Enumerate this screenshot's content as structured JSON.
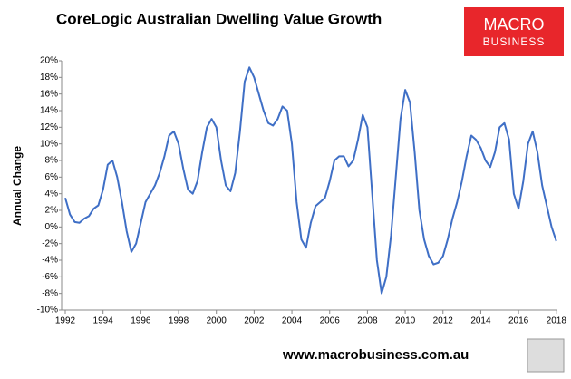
{
  "chart_data": {
    "type": "line",
    "title": "CoreLogic Australian Dwelling Value Growth",
    "ylabel": "Annual Change",
    "logo": {
      "line1": "MACRO",
      "line2": "BUSINESS"
    },
    "footer": "www.macrobusiness.com.au",
    "xlim": [
      1992,
      2018.25
    ],
    "xticks": [
      1992,
      1994,
      1996,
      1998,
      2000,
      2002,
      2004,
      2006,
      2008,
      2010,
      2012,
      2014,
      2016,
      2018
    ],
    "ylim": [
      -10,
      20
    ],
    "yticks": [
      {
        "value": -10,
        "label": "-10%"
      },
      {
        "value": -8,
        "label": "-8%"
      },
      {
        "value": -6,
        "label": "-6%"
      },
      {
        "value": -4,
        "label": "-4%"
      },
      {
        "value": -2,
        "label": "-2%"
      },
      {
        "value": 0,
        "label": "0%"
      },
      {
        "value": 2,
        "label": "2%"
      },
      {
        "value": 4,
        "label": "4%"
      },
      {
        "value": 6,
        "label": "6%"
      },
      {
        "value": 8,
        "label": "8%"
      },
      {
        "value": 10,
        "label": "10%"
      },
      {
        "value": 12,
        "label": "12%"
      },
      {
        "value": 14,
        "label": "14%"
      },
      {
        "value": 16,
        "label": "16%"
      },
      {
        "value": 18,
        "label": "18%"
      },
      {
        "value": 20,
        "label": "20%"
      }
    ],
    "grid": false,
    "x": [
      1992,
      1992.25,
      1992.5,
      1992.75,
      1993,
      1993.25,
      1993.5,
      1993.75,
      1994,
      1994.25,
      1994.5,
      1994.75,
      1995,
      1995.25,
      1995.5,
      1995.75,
      1996,
      1996.25,
      1996.5,
      1996.75,
      1997,
      1997.25,
      1997.5,
      1997.75,
      1998,
      1998.25,
      1998.5,
      1998.75,
      1999,
      1999.25,
      1999.5,
      1999.75,
      2000,
      2000.25,
      2000.5,
      2000.75,
      2001,
      2001.25,
      2001.5,
      2001.75,
      2002,
      2002.25,
      2002.5,
      2002.75,
      2003,
      2003.25,
      2003.5,
      2003.75,
      2004,
      2004.25,
      2004.5,
      2004.75,
      2005,
      2005.25,
      2005.5,
      2005.75,
      2006,
      2006.25,
      2006.5,
      2006.75,
      2007,
      2007.25,
      2007.5,
      2007.75,
      2008,
      2008.25,
      2008.5,
      2008.75,
      2009,
      2009.25,
      2009.5,
      2009.75,
      2010,
      2010.25,
      2010.5,
      2010.75,
      2011,
      2011.25,
      2011.5,
      2011.75,
      2012,
      2012.25,
      2012.5,
      2012.75,
      2013,
      2013.25,
      2013.5,
      2013.75,
      2014,
      2014.25,
      2014.5,
      2014.75,
      2015,
      2015.25,
      2015.5,
      2015.75,
      2016,
      2016.25,
      2016.5,
      2016.75,
      2017,
      2017.25,
      2017.5,
      2017.75,
      2018
    ],
    "series": [
      {
        "name": "Annual Change",
        "color": "#3f6fc6",
        "values": [
          3.5,
          1.5,
          0.6,
          0.5,
          1.0,
          1.3,
          2.2,
          2.6,
          4.5,
          7.5,
          8.0,
          6.0,
          3.0,
          -0.5,
          -3.0,
          -2.0,
          0.5,
          3.0,
          4.0,
          5.0,
          6.5,
          8.5,
          11.0,
          11.5,
          10.0,
          7.0,
          4.5,
          4.0,
          5.5,
          9.0,
          12.0,
          13.0,
          12.0,
          8.0,
          5.0,
          4.3,
          6.5,
          11.5,
          17.5,
          19.2,
          18.0,
          16.0,
          14.0,
          12.5,
          12.2,
          13.0,
          14.5,
          14.0,
          10.0,
          3.0,
          -1.5,
          -2.5,
          0.5,
          2.5,
          3.0,
          3.5,
          5.5,
          8.0,
          8.5,
          8.5,
          7.3,
          8.0,
          10.5,
          13.5,
          12.0,
          4.0,
          -4.0,
          -8.0,
          -6.0,
          -1.0,
          6.0,
          13.0,
          16.5,
          15.0,
          9.0,
          2.0,
          -1.5,
          -3.5,
          -4.5,
          -4.3,
          -3.5,
          -1.5,
          1.0,
          3.0,
          5.5,
          8.5,
          11.0,
          10.5,
          9.5,
          8.0,
          7.2,
          9.0,
          12.0,
          12.5,
          10.5,
          4.0,
          2.2,
          5.5,
          10.0,
          11.5,
          9.0,
          5.0,
          2.5,
          0.0,
          -1.7
        ]
      }
    ]
  }
}
